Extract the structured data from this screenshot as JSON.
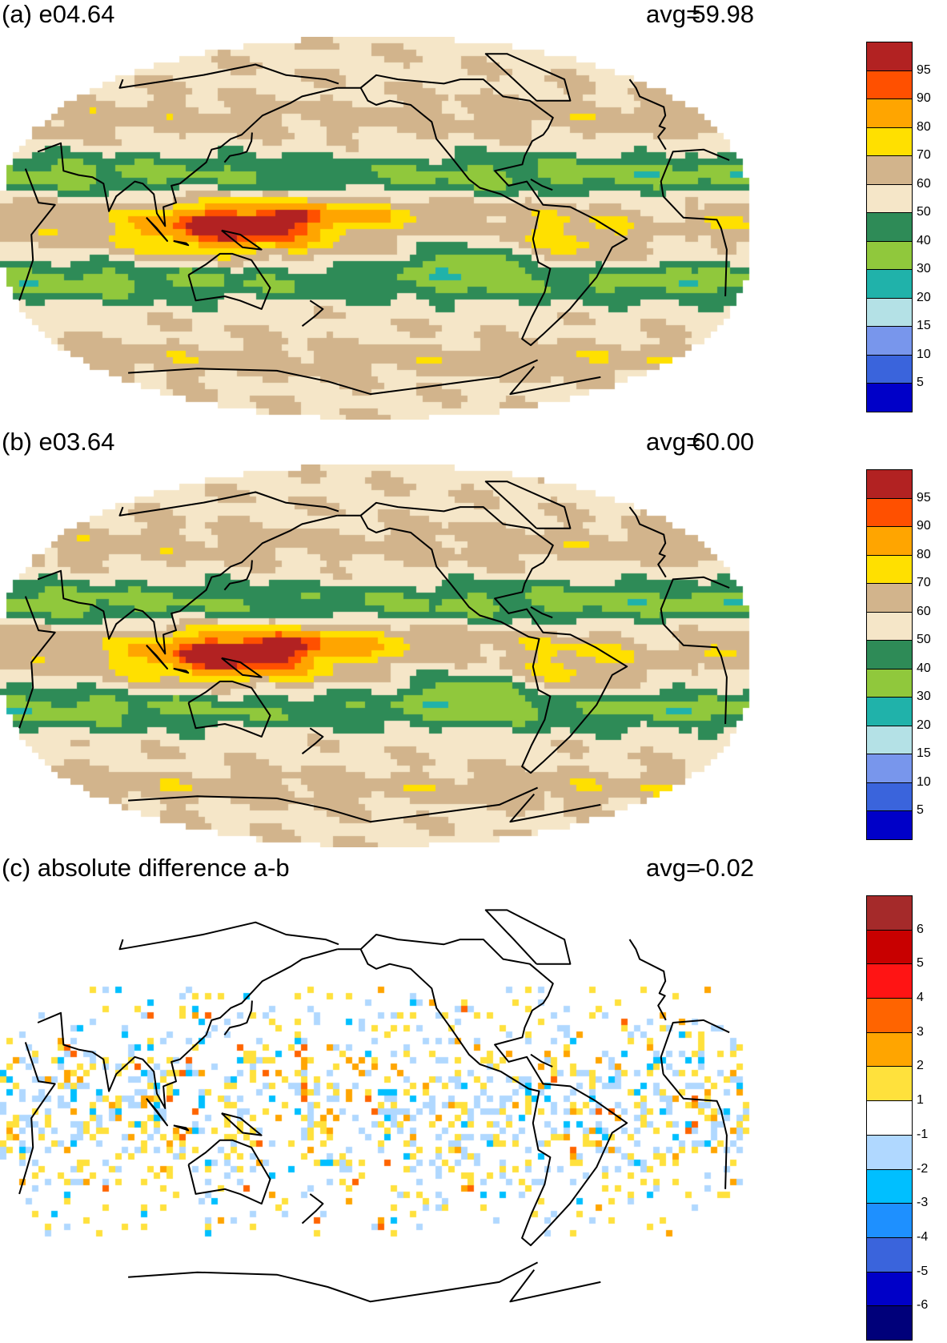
{
  "panels": [
    {
      "id": "a",
      "title": "(a) e04.64",
      "avg_label": "avg=",
      "avg_value": "59.98",
      "field_type": "precip",
      "colorbar": {
        "colors": [
          "#0000c8",
          "#3a64dc",
          "#7896ec",
          "#b4e1e6",
          "#20b2aa",
          "#90c83c",
          "#2e8b57",
          "#f5e6c8",
          "#d2b48c",
          "#ffe000",
          "#ffa500",
          "#ff5000",
          "#b22222"
        ],
        "labels": [
          "5",
          "10",
          "15",
          "20",
          "30",
          "40",
          "50",
          "60",
          "70",
          "80",
          "90",
          "95"
        ]
      }
    },
    {
      "id": "b",
      "title": "(b) e03.64",
      "avg_label": "avg=",
      "avg_value": "60.00",
      "field_type": "precip",
      "colorbar": {
        "colors": [
          "#0000c8",
          "#3a64dc",
          "#7896ec",
          "#b4e1e6",
          "#20b2aa",
          "#90c83c",
          "#2e8b57",
          "#f5e6c8",
          "#d2b48c",
          "#ffe000",
          "#ffa500",
          "#ff5000",
          "#b22222"
        ],
        "labels": [
          "5",
          "10",
          "15",
          "20",
          "30",
          "40",
          "50",
          "60",
          "70",
          "80",
          "90",
          "95"
        ]
      }
    },
    {
      "id": "c",
      "title": "(c) absolute difference a-b",
      "avg_label": "avg=",
      "avg_value": "-0.02",
      "field_type": "diff",
      "colorbar": {
        "colors": [
          "#00007a",
          "#0000c8",
          "#3a64dc",
          "#1e90ff",
          "#00bfff",
          "#b0d8ff",
          "#ffffff",
          "#ffe13c",
          "#ffa500",
          "#ff6400",
          "#ff1414",
          "#c80000",
          "#a52a2a"
        ],
        "labels": [
          "-6",
          "-5",
          "-4",
          "-3",
          "-2",
          "-1",
          "1",
          "2",
          "3",
          "4",
          "5",
          "6"
        ]
      }
    }
  ]
}
